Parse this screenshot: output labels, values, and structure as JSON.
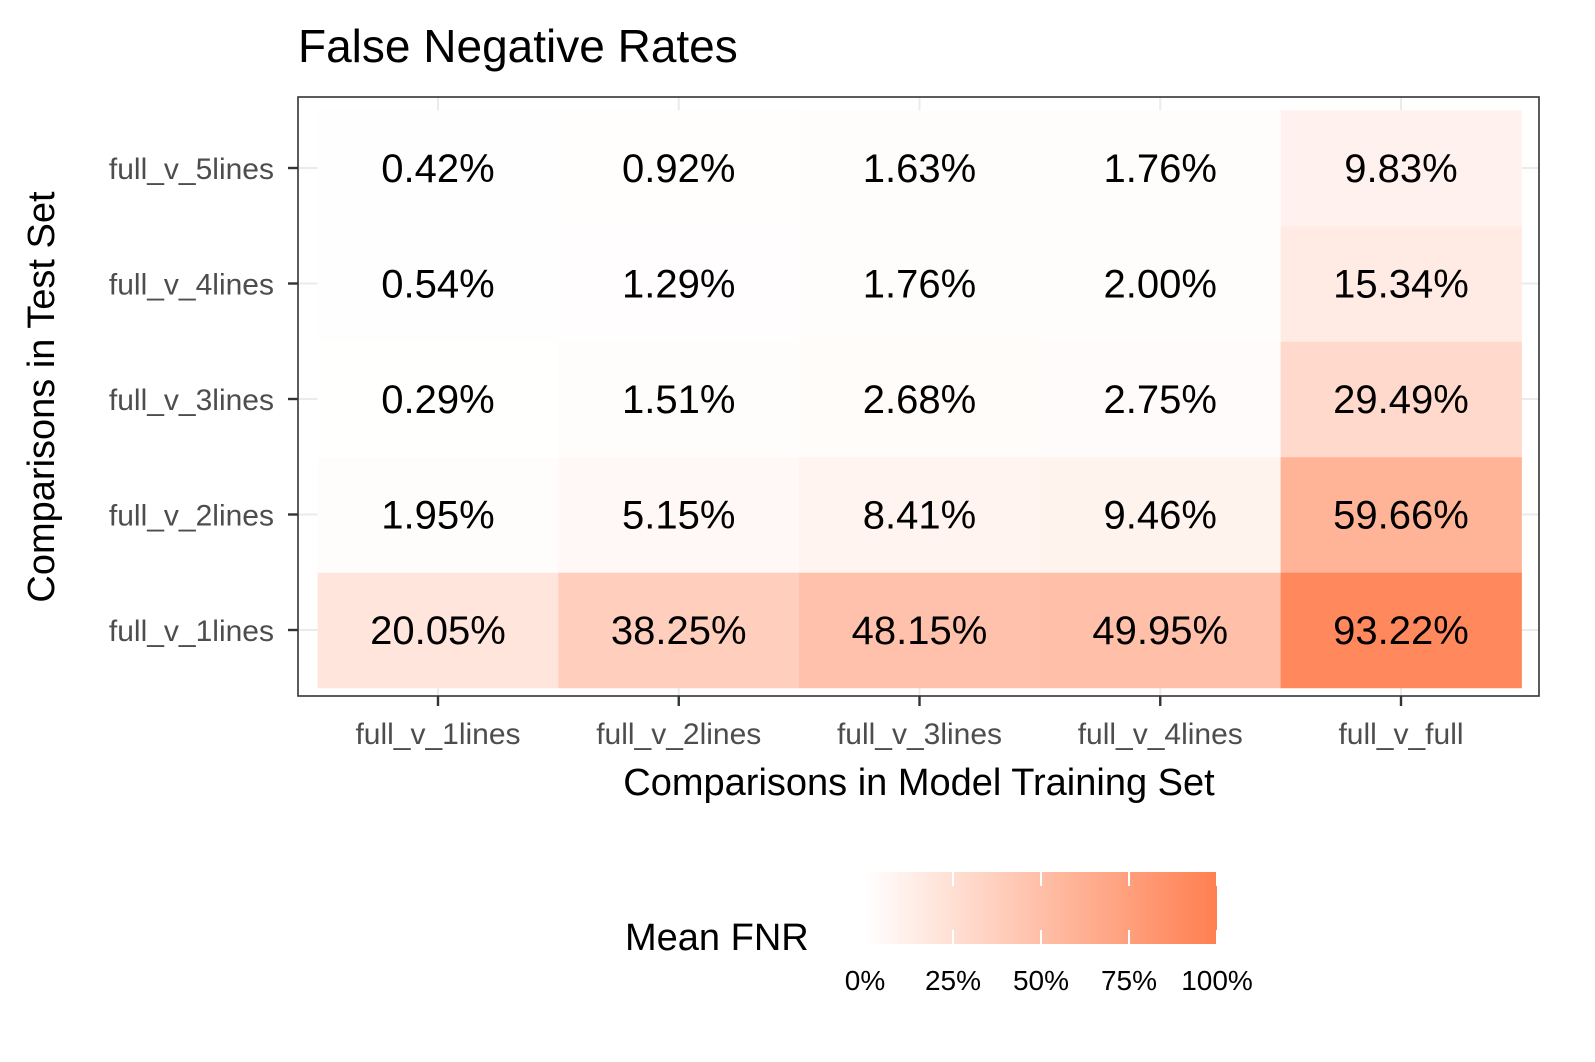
{
  "chart_data": {
    "type": "heatmap",
    "title": "False Negative Rates",
    "xlabel": "Comparisons in Model Training Set",
    "ylabel": "Comparisons in Test Set",
    "x_categories": [
      "full_v_1lines",
      "full_v_2lines",
      "full_v_3lines",
      "full_v_4lines",
      "full_v_full"
    ],
    "y_categories": [
      "full_v_1lines",
      "full_v_2lines",
      "full_v_3lines",
      "full_v_4lines",
      "full_v_5lines"
    ],
    "values": [
      [
        20.05,
        38.25,
        48.15,
        49.95,
        93.22
      ],
      [
        1.95,
        5.15,
        8.41,
        9.46,
        59.66
      ],
      [
        0.29,
        1.51,
        2.68,
        2.75,
        29.49
      ],
      [
        0.54,
        1.29,
        1.76,
        2.0,
        15.34
      ],
      [
        0.42,
        0.92,
        1.63,
        1.76,
        9.83
      ]
    ],
    "value_labels": [
      [
        "20.05%",
        "38.25%",
        "48.15%",
        "49.95%",
        "93.22%"
      ],
      [
        "1.95%",
        "5.15%",
        "8.41%",
        "9.46%",
        "59.66%"
      ],
      [
        "0.29%",
        "1.51%",
        "2.68%",
        "2.75%",
        "29.49%"
      ],
      [
        "0.54%",
        "1.29%",
        "1.76%",
        "2.00%",
        "15.34%"
      ],
      [
        "0.42%",
        "0.92%",
        "1.63%",
        "1.76%",
        "9.83%"
      ]
    ],
    "legend": {
      "title": "Mean FNR",
      "position": "bottom",
      "ticks": [
        0,
        25,
        50,
        75,
        100
      ],
      "tick_labels": [
        "0%",
        "25%",
        "50%",
        "75%",
        "100%"
      ],
      "low_color": "#ffffff",
      "high_color": "#ff7f50"
    },
    "grid": true,
    "range": [
      0,
      100
    ]
  }
}
